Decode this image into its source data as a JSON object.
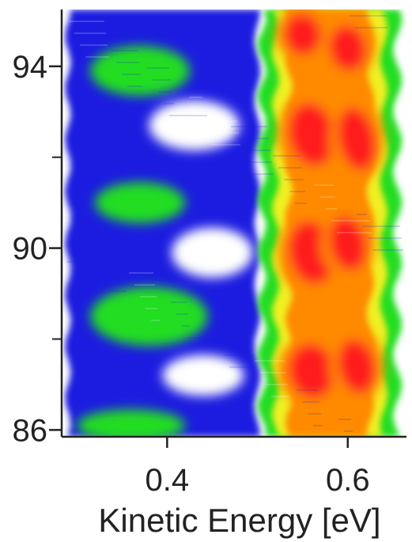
{
  "chart_data": {
    "type": "heatmap",
    "title": "",
    "xlabel": "Kinetic Energy [eV]",
    "ylabel": "",
    "xlim": [
      0.285,
      0.665
    ],
    "ylim": [
      85.85,
      95.25
    ],
    "x_ticks": [
      0.4,
      0.6
    ],
    "x_tick_labels": [
      "0.4",
      "0.6"
    ],
    "y_major_ticks": [
      86,
      90,
      94
    ],
    "y_tick_labels": [
      "86",
      "90",
      "94"
    ],
    "y_minor_ticks": [
      88,
      92
    ],
    "colorscale": [
      "#ffffff",
      "#1e1ee0",
      "#22dd22",
      "#f0f020",
      "#ff8a00",
      "#ff1a1a"
    ],
    "features": [
      {
        "kind": "green-lobe",
        "x_center": 0.37,
        "y_center": 93.9,
        "x_halfwidth": 0.055,
        "y_halfwidth": 0.55
      },
      {
        "kind": "green-lobe",
        "x_center": 0.37,
        "y_center": 91.0,
        "x_halfwidth": 0.05,
        "y_halfwidth": 0.45
      },
      {
        "kind": "green-lobe",
        "x_center": 0.38,
        "y_center": 88.5,
        "x_halfwidth": 0.065,
        "y_halfwidth": 0.65
      },
      {
        "kind": "green-lobe",
        "x_center": 0.36,
        "y_center": 86.1,
        "x_halfwidth": 0.06,
        "y_halfwidth": 0.35
      },
      {
        "kind": "white-gap",
        "x_center": 0.43,
        "y_center": 92.7,
        "x_halfwidth": 0.05,
        "y_halfwidth": 0.55
      },
      {
        "kind": "white-gap",
        "x_center": 0.45,
        "y_center": 89.9,
        "x_halfwidth": 0.045,
        "y_halfwidth": 0.55
      },
      {
        "kind": "white-gap",
        "x_center": 0.44,
        "y_center": 87.2,
        "x_halfwidth": 0.045,
        "y_halfwidth": 0.45
      },
      {
        "kind": "red-peak",
        "x_center": 0.55,
        "y_center": 94.7,
        "x_halfwidth": 0.02,
        "y_halfwidth": 0.45
      },
      {
        "kind": "red-peak",
        "x_center": 0.6,
        "y_center": 94.4,
        "x_halfwidth": 0.02,
        "y_halfwidth": 0.5
      },
      {
        "kind": "red-peak",
        "x_center": 0.56,
        "y_center": 92.5,
        "x_halfwidth": 0.025,
        "y_halfwidth": 0.7
      },
      {
        "kind": "red-peak",
        "x_center": 0.61,
        "y_center": 92.4,
        "x_halfwidth": 0.02,
        "y_halfwidth": 0.7
      },
      {
        "kind": "red-peak",
        "x_center": 0.56,
        "y_center": 89.9,
        "x_halfwidth": 0.025,
        "y_halfwidth": 0.7
      },
      {
        "kind": "red-peak",
        "x_center": 0.6,
        "y_center": 90.1,
        "x_halfwidth": 0.02,
        "y_halfwidth": 0.6
      },
      {
        "kind": "red-peak",
        "x_center": 0.56,
        "y_center": 87.3,
        "x_halfwidth": 0.025,
        "y_halfwidth": 0.6
      },
      {
        "kind": "red-peak",
        "x_center": 0.61,
        "y_center": 87.4,
        "x_halfwidth": 0.02,
        "y_halfwidth": 0.6
      }
    ]
  }
}
